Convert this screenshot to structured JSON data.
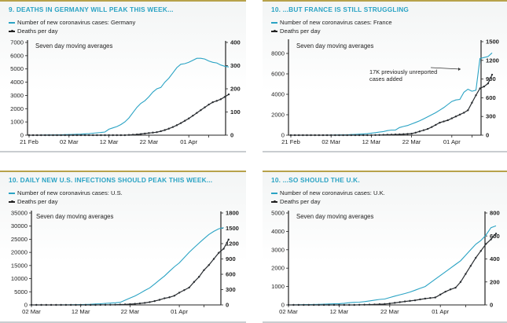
{
  "chart_data": [
    {
      "id": "germany",
      "type": "line",
      "title": "9.  DEATHS IN GERMANY WILL PEAK THIS WEEK...",
      "subtitle": "Seven day moving averages",
      "legend": [
        "Number of new coronavirus cases: Germany",
        "Deaths per day"
      ],
      "legend_position": "top-left",
      "x_start": "21 Feb",
      "xticks": [
        "21 Feb",
        "02 Mar",
        "12 Mar",
        "22 Mar",
        "01 Apr"
      ],
      "y_left": {
        "range": [
          0,
          7000
        ],
        "ticks": [
          0,
          1000,
          2000,
          3000,
          4000,
          5000,
          6000,
          7000
        ]
      },
      "y_right": {
        "range": [
          0,
          400
        ],
        "ticks": [
          0,
          100,
          200,
          300,
          400
        ]
      },
      "series": [
        {
          "name": "Number of new coronavirus cases: Germany",
          "axis": "left",
          "color": "#2aa3c4",
          "values": [
            0,
            0,
            2,
            5,
            10,
            15,
            20,
            25,
            30,
            40,
            50,
            60,
            70,
            80,
            100,
            120,
            150,
            180,
            200,
            240,
            450,
            550,
            650,
            800,
            1000,
            1300,
            1700,
            2100,
            2400,
            2600,
            2900,
            3250,
            3500,
            3600,
            4000,
            4300,
            4700,
            5100,
            5350,
            5400,
            5500,
            5650,
            5800,
            5800,
            5750,
            5600,
            5500,
            5450,
            5300,
            5200,
            5150
          ]
        },
        {
          "name": "Deaths per day",
          "axis": "right",
          "color": "#2b2f33",
          "values": [
            0,
            0,
            0,
            0,
            0,
            0,
            0,
            0,
            0,
            0,
            0,
            0,
            0,
            0,
            0,
            0,
            0,
            0,
            0,
            0,
            0,
            0,
            0,
            0,
            0,
            1,
            2,
            3,
            5,
            7,
            9,
            11,
            13,
            17,
            22,
            28,
            35,
            43,
            52,
            62,
            72,
            84,
            96,
            108,
            120,
            132,
            142,
            148,
            155,
            165,
            176
          ]
        }
      ]
    },
    {
      "id": "france",
      "type": "line",
      "title": "10.  ...BUT FRANCE IS STILL STRUGGLING",
      "subtitle": "Seven day moving averages",
      "annotation": "17K previously unreported cases added",
      "legend": [
        "Number of new coronavirus cases: France",
        "Deaths per day"
      ],
      "legend_position": "top-left",
      "x_start": "21 Feb",
      "xticks": [
        "21 Feb",
        "02 Mar",
        "12 Mar",
        "22 Mar",
        "01 Apr"
      ],
      "y_left": {
        "range": [
          0,
          8500
        ],
        "ticks": [
          0,
          2000,
          4000,
          6000,
          8000
        ]
      },
      "y_right": {
        "range": [
          0,
          1500
        ],
        "ticks": [
          0,
          300,
          600,
          900,
          1200,
          1500
        ]
      },
      "series": [
        {
          "name": "Number of new coronavirus cases: France",
          "axis": "left",
          "color": "#2aa3c4",
          "values": [
            0,
            0,
            0,
            0,
            0,
            0,
            0,
            0,
            0,
            5,
            10,
            15,
            20,
            30,
            40,
            60,
            80,
            100,
            120,
            150,
            200,
            250,
            300,
            350,
            450,
            500,
            500,
            750,
            850,
            950,
            1100,
            1250,
            1400,
            1600,
            1800,
            2000,
            2200,
            2450,
            2700,
            3000,
            3300,
            3450,
            3500,
            4200,
            4500,
            4300,
            4400,
            7500,
            7600,
            7700,
            8050
          ]
        },
        {
          "name": "Deaths per day",
          "axis": "right",
          "color": "#2b2f33",
          "values": [
            0,
            0,
            0,
            0,
            0,
            0,
            0,
            0,
            0,
            0,
            0,
            0,
            0,
            0,
            0,
            0,
            0,
            0,
            0,
            0,
            0,
            2,
            3,
            5,
            7,
            9,
            11,
            13,
            16,
            20,
            25,
            40,
            60,
            80,
            100,
            130,
            165,
            200,
            220,
            240,
            270,
            300,
            330,
            360,
            400,
            520,
            640,
            750,
            780,
            830,
            970
          ]
        }
      ]
    },
    {
      "id": "us",
      "type": "line",
      "title": "10.  DAILY NEW U.S. INFECTIONS SHOULD PEAK THIS WEEK...",
      "subtitle": "Seven day moving averages",
      "legend": [
        "Number of new coronavirus cases: U.S.",
        "Deaths per day"
      ],
      "legend_position": "top-left",
      "x_start": "02 Mar",
      "xticks": [
        "02 Mar",
        "12 Mar",
        "22 Mar",
        "01 Apr"
      ],
      "y_left": {
        "range": [
          0,
          35000
        ],
        "ticks": [
          0,
          5000,
          10000,
          15000,
          20000,
          25000,
          30000,
          35000
        ]
      },
      "y_right": {
        "range": [
          0,
          1800
        ],
        "ticks": [
          0,
          300,
          600,
          900,
          1200,
          1500,
          1800
        ]
      },
      "series": [
        {
          "name": "Number of new coronavirus cases: U.S.",
          "axis": "left",
          "color": "#2aa3c4",
          "values": [
            0,
            0,
            0,
            0,
            0,
            10,
            20,
            40,
            60,
            90,
            130,
            180,
            250,
            350,
            450,
            600,
            700,
            800,
            1000,
            1800,
            2600,
            3400,
            4400,
            5500,
            6500,
            8000,
            9500,
            11000,
            12800,
            14500,
            16000,
            18000,
            20000,
            21800,
            23500,
            25200,
            26800,
            28000,
            29000,
            29400
          ]
        },
        {
          "name": "Deaths per day",
          "axis": "right",
          "color": "#2b2f33",
          "values": [
            0,
            0,
            0,
            0,
            0,
            0,
            0,
            0,
            0,
            0,
            0,
            0,
            0,
            0,
            1,
            2,
            3,
            5,
            7,
            10,
            15,
            22,
            30,
            40,
            55,
            75,
            100,
            130,
            150,
            180,
            240,
            290,
            340,
            450,
            550,
            680,
            780,
            900,
            1020,
            1100,
            1280
          ]
        }
      ]
    },
    {
      "id": "uk",
      "type": "line",
      "title": "10.  ...SO SHOULD THE U.K.",
      "subtitle": "Seven day moving averages",
      "legend": [
        "Number of new coronavirus cases: U.K.",
        "Deaths per day"
      ],
      "legend_position": "top-left",
      "x_start": "02 Mar",
      "xticks": [
        "02 Mar",
        "12 Mar",
        "22 Mar",
        "01 Apr"
      ],
      "y_left": {
        "range": [
          0,
          5000
        ],
        "ticks": [
          0,
          1000,
          2000,
          3000,
          4000,
          5000
        ]
      },
      "y_right": {
        "range": [
          0,
          800
        ],
        "ticks": [
          0,
          200,
          400,
          600,
          800
        ]
      },
      "series": [
        {
          "name": "Number of new coronavirus cases: U.K.",
          "axis": "left",
          "color": "#2aa3c4",
          "values": [
            0,
            5,
            10,
            15,
            20,
            25,
            30,
            40,
            50,
            60,
            70,
            90,
            120,
            140,
            150,
            180,
            220,
            260,
            300,
            320,
            400,
            480,
            550,
            620,
            700,
            800,
            900,
            1000,
            1200,
            1400,
            1600,
            1800,
            2000,
            2200,
            2400,
            2700,
            3000,
            3300,
            3500,
            3800,
            4200,
            4300
          ]
        },
        {
          "name": "Deaths per day",
          "axis": "right",
          "color": "#2b2f33",
          "values": [
            0,
            0,
            0,
            0,
            0,
            0,
            0,
            0,
            0,
            0,
            0,
            0,
            0,
            0,
            1,
            2,
            3,
            4,
            6,
            8,
            12,
            18,
            24,
            30,
            35,
            40,
            48,
            55,
            60,
            65,
            90,
            115,
            135,
            150,
            200,
            270,
            340,
            410,
            470,
            530,
            570,
            620
          ]
        }
      ]
    }
  ]
}
